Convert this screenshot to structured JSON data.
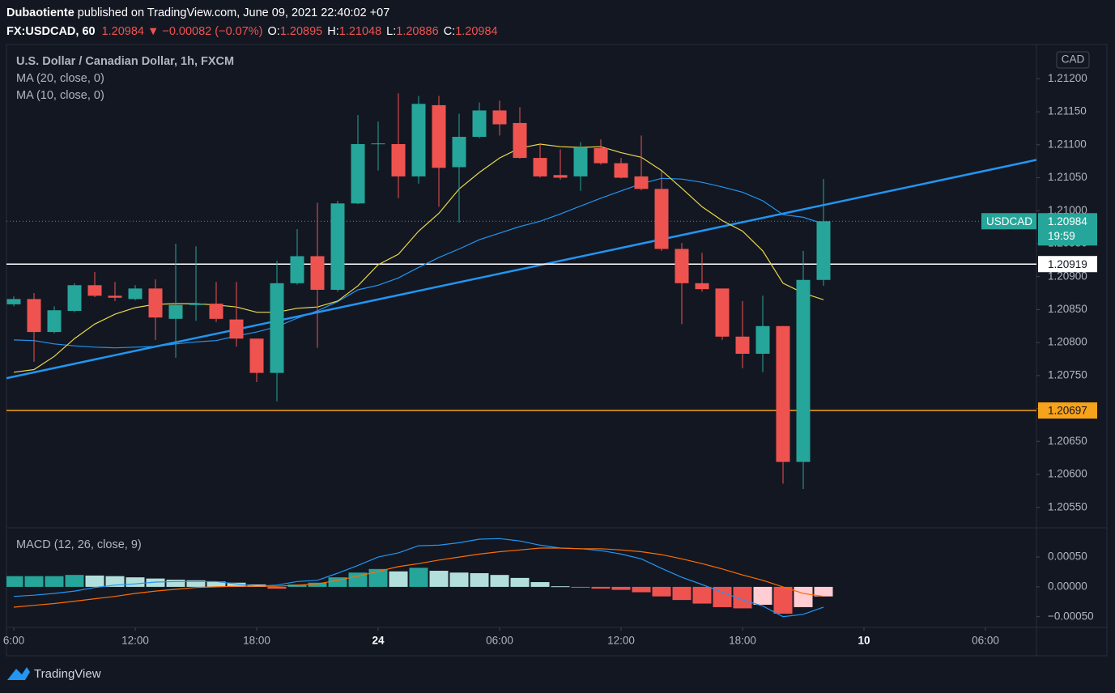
{
  "header": {
    "author": "Dubaotiente",
    "published": " published on TradingView.com, June 09, 2021 22:40:02 +07",
    "symbol": "FX:USDCAD, 60",
    "last": "1.20984",
    "arrow": "▼",
    "change": "−0.00082 (−0.07%)",
    "ohlc": [
      {
        "label": "O:",
        "value": "1.20895"
      },
      {
        "label": "H:",
        "value": "1.21048"
      },
      {
        "label": "L:",
        "value": "1.20886"
      },
      {
        "label": "C:",
        "value": "1.20984"
      }
    ]
  },
  "footer": {
    "brand": "TradingView"
  },
  "chart_data": [
    {
      "type": "candlestick",
      "title": "U.S. Dollar / Canadian Dollar, 1h, FXCM",
      "currency": "CAD",
      "x": [
        6,
        7,
        8,
        9,
        10,
        11,
        12,
        13,
        14,
        15,
        16,
        17,
        18,
        19,
        20,
        21,
        22,
        23,
        24,
        25,
        26,
        27,
        28,
        29,
        30,
        31,
        32,
        33,
        34,
        35,
        36,
        37,
        38,
        39,
        40,
        41,
        42,
        43,
        44,
        45,
        46
      ],
      "open": [
        1.20858,
        1.20866,
        1.20816,
        1.20848,
        1.20887,
        1.20871,
        1.20866,
        1.20882,
        1.20836,
        1.20857,
        1.20859,
        1.20835,
        1.20806,
        1.20754,
        1.2089,
        1.20931,
        1.2088,
        1.21011,
        1.21101,
        1.21101,
        1.21052,
        1.2116,
        1.21066,
        1.21112,
        1.21152,
        1.21133,
        1.2108,
        1.21054,
        1.21052,
        1.21095,
        1.21072,
        1.21052,
        1.21033,
        1.20942,
        1.2089,
        1.20882,
        1.20809,
        1.20783,
        1.20825,
        1.20619,
        1.20895
      ],
      "high": [
        1.2087,
        1.20875,
        1.20855,
        1.2089,
        1.20907,
        1.20892,
        1.20887,
        1.20896,
        1.2095,
        1.20946,
        1.20892,
        1.20892,
        1.20806,
        1.20924,
        1.20972,
        1.21012,
        1.21015,
        1.21145,
        1.21135,
        1.21178,
        1.21174,
        1.21174,
        1.21147,
        1.21164,
        1.21167,
        1.21157,
        1.21101,
        1.21093,
        1.21104,
        1.21108,
        1.2108,
        1.21114,
        1.2106,
        1.20951,
        1.20936,
        1.20882,
        1.20863,
        1.20871,
        1.20825,
        1.20939,
        1.21048
      ],
      "low": [
        1.20855,
        1.20771,
        1.20814,
        1.20846,
        1.20869,
        1.20863,
        1.20864,
        1.20804,
        1.20777,
        1.20833,
        1.20831,
        1.20794,
        1.2074,
        1.20711,
        1.20888,
        1.20792,
        1.20877,
        1.2101,
        1.21061,
        1.21019,
        1.21041,
        1.21006,
        1.20982,
        1.2111,
        1.21114,
        1.21079,
        1.2105,
        1.21047,
        1.2103,
        1.2107,
        1.21049,
        1.21031,
        1.20939,
        1.20828,
        1.20877,
        1.20804,
        1.20761,
        1.20755,
        1.20586,
        1.20578,
        1.20886
      ],
      "close": [
        1.20866,
        1.20816,
        1.20849,
        1.20887,
        1.20871,
        1.20868,
        1.20882,
        1.20838,
        1.20857,
        1.20859,
        1.20836,
        1.20806,
        1.20754,
        1.2089,
        1.20931,
        1.2088,
        1.21011,
        1.21101,
        1.21102,
        1.21052,
        1.21162,
        1.21065,
        1.21112,
        1.21152,
        1.21131,
        1.2108,
        1.21052,
        1.2105,
        1.21096,
        1.21072,
        1.2105,
        1.21033,
        1.20942,
        1.2089,
        1.20881,
        1.20809,
        1.20783,
        1.20825,
        1.20619,
        1.20895,
        1.20984
      ],
      "up_color": "#26a69a",
      "down_color": "#ef5350",
      "series": [
        {
          "name": "MA (20, close, 0)",
          "color": "#2196f3",
          "values": [
            1.20804,
            1.20803,
            1.20798,
            1.20795,
            1.20793,
            1.20792,
            1.20793,
            1.20794,
            1.20798,
            1.20801,
            1.20803,
            1.2081,
            1.20816,
            1.20824,
            1.20837,
            1.20848,
            1.20862,
            1.2088,
            1.20887,
            1.20898,
            1.20914,
            1.20929,
            1.20942,
            1.20956,
            1.20966,
            1.20976,
            1.20984,
            1.20995,
            1.21007,
            1.21019,
            1.2103,
            1.21041,
            1.21049,
            1.21048,
            1.21043,
            1.21036,
            1.21028,
            1.21015,
            1.20994,
            1.2099,
            1.2098
          ]
        },
        {
          "name": "MA (10, close, 0)",
          "color": "#e8d84a",
          "values": [
            1.20755,
            1.20759,
            1.20779,
            1.20806,
            1.20828,
            1.20843,
            1.20853,
            1.20858,
            1.20859,
            1.20859,
            1.20857,
            1.20854,
            1.20846,
            1.20846,
            1.20852,
            1.20854,
            1.20863,
            1.20886,
            1.20918,
            1.20934,
            1.20969,
            1.20996,
            1.21033,
            1.21058,
            1.2108,
            1.21095,
            1.21101,
            1.21097,
            1.21096,
            1.21097,
            1.21088,
            1.21081,
            1.21061,
            1.21034,
            1.21006,
            1.20985,
            1.20969,
            1.20939,
            1.2089,
            1.20875,
            1.20865
          ]
        }
      ],
      "trendline": {
        "x": [
          5.64,
          56.52
        ],
        "values": [
          1.20746,
          1.21077
        ],
        "color": "#2196f3"
      },
      "price_lines": [
        {
          "value": 1.20919,
          "color": "#ffffff"
        },
        {
          "value": 1.20697,
          "color": "#f7a21b"
        }
      ],
      "last_price": {
        "name": "USDCAD",
        "value": 1.20984,
        "countdown": "19:59",
        "color": "#26a69a"
      },
      "xlim": [
        5.64,
        56.52
      ],
      "xticks": [
        {
          "value": 6,
          "label": "6:00"
        },
        {
          "value": 12,
          "label": "12:00"
        },
        {
          "value": 18,
          "label": "18:00"
        },
        24,
        {
          "value": 30,
          "label": "06:00"
        },
        {
          "value": 36,
          "label": "12:00"
        },
        {
          "value": 42,
          "label": "18:00"
        },
        {
          "value": 48,
          "label": "10"
        },
        {
          "value": 54,
          "label": "06:00"
        }
      ],
      "ylim": [
        1.20519,
        1.21252
      ],
      "yticks": [
        {
          "value": 1.212,
          "label": "1.21200"
        },
        {
          "value": 1.2115,
          "label": "1.21150"
        },
        {
          "value": 1.211,
          "label": "1.21100"
        },
        {
          "value": 1.2105,
          "label": "1.21050"
        },
        {
          "value": 1.21,
          "label": "1.21000"
        },
        {
          "value": 1.2095,
          "label": "1.20950"
        },
        {
          "value": 1.209,
          "label": "1.20900"
        },
        {
          "value": 1.2085,
          "label": "1.20850"
        },
        {
          "value": 1.208,
          "label": "1.20800"
        },
        {
          "value": 1.2075,
          "label": "1.20750"
        },
        {
          "value": 1.207,
          "label": "1.20700"
        },
        {
          "value": 1.2065,
          "label": "1.20650"
        },
        {
          "value": 1.206,
          "label": "1.20600"
        },
        {
          "value": 1.2055,
          "label": "1.20550"
        }
      ],
      "grid": false
    },
    {
      "type": "macd",
      "title": "MACD (12, 26, close, 9)",
      "histogram": {
        "values": [
          0.00018,
          0.00018,
          0.00018,
          0.0002,
          0.00019,
          0.00018,
          0.00016,
          0.00014,
          0.00012,
          0.00011,
          9e-05,
          7e-05,
          4e-05,
          -3e-05,
          4e-05,
          7e-05,
          0.00016,
          0.00024,
          0.0003,
          0.00026,
          0.00032,
          0.00027,
          0.00024,
          0.00023,
          0.0002,
          0.00015,
          8e-05,
          1e-05,
          -1e-05,
          -3e-05,
          -5e-05,
          -9e-05,
          -0.00016,
          -0.00022,
          -0.00028,
          -0.00034,
          -0.00036,
          -0.0003,
          -0.00045,
          -0.00034,
          -0.00016
        ],
        "colors": [
          "#26a69a",
          "#b2dfdb",
          "#ef5350",
          "#ffcdd2"
        ]
      },
      "macd": {
        "color": "#2196f3",
        "values": [
          -0.00016,
          -0.00014,
          -0.00011,
          -7e-05,
          -1e-05,
          3e-05,
          5e-05,
          8e-05,
          9e-05,
          9e-05,
          9e-05,
          5e-05,
          1e-05,
          3e-05,
          9e-05,
          0.00011,
          0.00023,
          0.00036,
          0.0005,
          0.00057,
          0.00069,
          0.0007,
          0.00074,
          0.0008,
          0.00081,
          0.00077,
          0.0007,
          0.00065,
          0.00064,
          0.00061,
          0.00055,
          0.00047,
          0.00031,
          0.00016,
          4e-05,
          -9e-05,
          -0.00022,
          -0.00032,
          -0.0005,
          -0.00046,
          -0.00034
        ]
      },
      "signal": {
        "color": "#ff6d00",
        "values": [
          -0.00034,
          -0.00031,
          -0.00028,
          -0.00024,
          -0.0002,
          -0.00016,
          -0.00011,
          -7e-05,
          -4e-05,
          -1e-05,
          0,
          1e-05,
          1e-05,
          1e-05,
          3e-05,
          5e-05,
          0.00011,
          0.00018,
          0.00026,
          0.00034,
          0.00039,
          0.00045,
          0.0005,
          0.00055,
          0.00059,
          0.00062,
          0.00065,
          0.00065,
          0.00064,
          0.00064,
          0.00062,
          0.00059,
          0.00054,
          0.00047,
          0.00039,
          0.0003,
          0.0002,
          0.00011,
          0,
          -0.00011,
          -0.00016
        ]
      },
      "ylim": [
        -0.00068,
        0.00099
      ],
      "yticks": [
        {
          "value": 0.0005,
          "label": "0.00050"
        },
        {
          "value": 0,
          "label": "0.00000"
        },
        {
          "value": -0.0005,
          "label": "−0.00050"
        }
      ]
    }
  ]
}
